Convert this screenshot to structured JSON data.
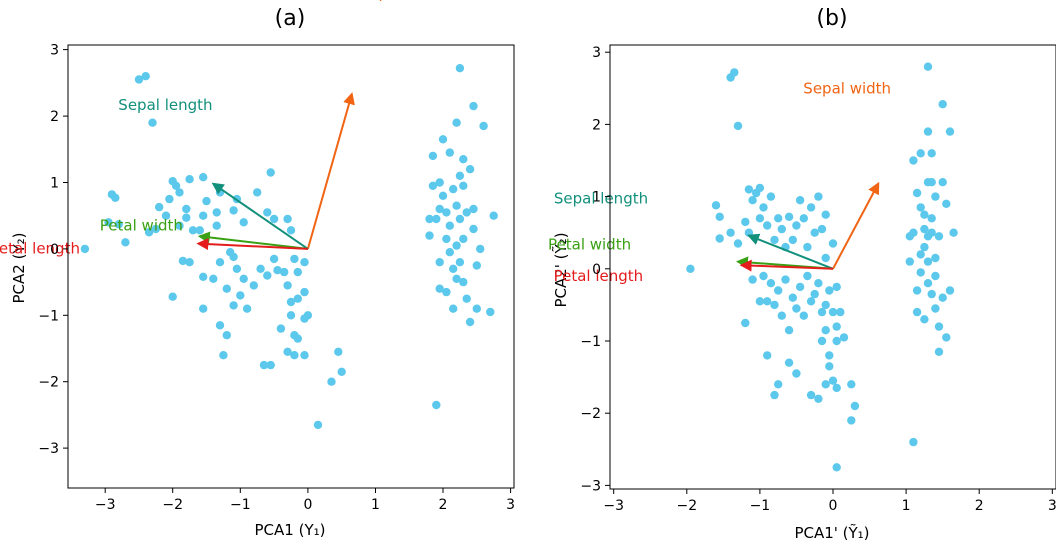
{
  "colors": {
    "points": "#5bc8ec",
    "axes": "#000000",
    "sepal_width": "#f06414",
    "sepal_length": "#12907c",
    "petal_width": "#3aa014",
    "petal_length": "#e41c1c"
  },
  "chart_data": [
    {
      "type": "scatter",
      "title": "(a)",
      "xlabel": "PCA1 (Y₁)",
      "ylabel": "PCA2 (Y₂)",
      "xlim": [
        -3.55,
        3.05
      ],
      "ylim": [
        -3.6,
        3.07
      ],
      "xticks": [
        -3,
        -2,
        -1,
        0,
        1,
        2,
        3
      ],
      "xtick_labels": [
        "−3",
        "−2",
        "−1",
        "0",
        "1",
        "2",
        "3"
      ],
      "yticks": [
        -3,
        -2,
        -1,
        0,
        1,
        2,
        3
      ],
      "ytick_labels": [
        "−3",
        "−2",
        "−1",
        "0",
        "1",
        "2",
        "3"
      ],
      "grid": false,
      "arrows": [
        {
          "name": "Sepal width",
          "color": "sepal_width",
          "dx": 0.65,
          "dy": 2.33
        },
        {
          "name": "Sepal length",
          "color": "sepal_length",
          "dx": -1.4,
          "dy": 0.98
        },
        {
          "name": "Petal width",
          "color": "petal_width",
          "dx": -1.6,
          "dy": 0.19
        },
        {
          "name": "Petal length",
          "color": "petal_length",
          "dx": -1.62,
          "dy": 0.08
        }
      ],
      "points": [
        [
          -3.3,
          0.0
        ],
        [
          -2.9,
          0.82
        ],
        [
          -2.85,
          0.77
        ],
        [
          -2.95,
          0.4
        ],
        [
          -2.8,
          0.37
        ],
        [
          -2.7,
          0.1
        ],
        [
          -2.5,
          2.55
        ],
        [
          -2.4,
          2.6
        ],
        [
          -2.3,
          1.9
        ],
        [
          -2.35,
          0.25
        ],
        [
          -2.25,
          0.3
        ],
        [
          -2.2,
          0.63
        ],
        [
          -2.1,
          0.5
        ],
        [
          -2.0,
          1.02
        ],
        [
          -1.95,
          0.95
        ],
        [
          -2.05,
          0.75
        ],
        [
          -1.9,
          0.85
        ],
        [
          -1.75,
          1.05
        ],
        [
          -1.8,
          0.6
        ],
        [
          -1.9,
          0.35
        ],
        [
          -1.8,
          0.47
        ],
        [
          -1.7,
          0.28
        ],
        [
          -1.6,
          0.28
        ],
        [
          -1.55,
          1.08
        ],
        [
          -1.5,
          0.72
        ],
        [
          -1.3,
          0.85
        ],
        [
          -1.55,
          0.5
        ],
        [
          -1.35,
          0.55
        ],
        [
          -1.35,
          0.35
        ],
        [
          -1.1,
          0.58
        ],
        [
          -1.05,
          0.75
        ],
        [
          -0.95,
          0.4
        ],
        [
          -0.75,
          0.85
        ],
        [
          -0.6,
          0.55
        ],
        [
          -0.5,
          0.45
        ],
        [
          -0.55,
          1.15
        ],
        [
          -0.3,
          0.45
        ],
        [
          -0.25,
          0.28
        ],
        [
          -1.85,
          -0.18
        ],
        [
          -1.75,
          -0.2
        ],
        [
          -1.55,
          -0.42
        ],
        [
          -1.4,
          -0.45
        ],
        [
          -1.3,
          -0.2
        ],
        [
          -1.15,
          -0.05
        ],
        [
          -1.2,
          -0.6
        ],
        [
          -1.1,
          -0.12
        ],
        [
          -1.05,
          -0.3
        ],
        [
          -0.95,
          -0.45
        ],
        [
          -1.0,
          -0.7
        ],
        [
          -1.1,
          -0.85
        ],
        [
          -0.9,
          -0.9
        ],
        [
          -0.8,
          -0.55
        ],
        [
          -0.7,
          -0.3
        ],
        [
          -0.6,
          -0.4
        ],
        [
          -0.5,
          -0.15
        ],
        [
          -0.45,
          -0.32
        ],
        [
          -0.35,
          -0.35
        ],
        [
          -0.2,
          -0.15
        ],
        [
          -0.15,
          -0.35
        ],
        [
          -0.05,
          -0.2
        ],
        [
          -0.3,
          -0.55
        ],
        [
          -0.25,
          -0.8
        ],
        [
          -0.15,
          -0.75
        ],
        [
          -0.05,
          -0.65
        ],
        [
          0.0,
          -1.0
        ],
        [
          -0.05,
          -1.05
        ],
        [
          -0.25,
          -1.0
        ],
        [
          -0.2,
          -1.3
        ],
        [
          -0.3,
          -1.55
        ],
        [
          -0.2,
          -1.6
        ],
        [
          -0.55,
          -1.75
        ],
        [
          -0.65,
          -1.75
        ],
        [
          -0.4,
          -1.2
        ],
        [
          -1.2,
          -1.3
        ],
        [
          -1.25,
          -1.6
        ],
        [
          -1.3,
          -1.15
        ],
        [
          -1.55,
          -0.9
        ],
        [
          -2.0,
          -0.72
        ],
        [
          0.45,
          -1.55
        ],
        [
          0.5,
          -1.85
        ],
        [
          0.35,
          -2.0
        ],
        [
          0.15,
          -2.65
        ],
        [
          -0.05,
          -1.6
        ],
        [
          -0.15,
          -1.35
        ],
        [
          1.9,
          -2.35
        ],
        [
          1.85,
          1.4
        ],
        [
          1.8,
          0.45
        ],
        [
          1.8,
          0.2
        ],
        [
          1.9,
          0.45
        ],
        [
          1.95,
          1.0
        ],
        [
          1.95,
          -0.2
        ],
        [
          1.95,
          -0.6
        ],
        [
          2.0,
          0.8
        ],
        [
          2.0,
          1.65
        ],
        [
          2.05,
          0.55
        ],
        [
          2.05,
          0.15
        ],
        [
          2.05,
          -0.65
        ],
        [
          2.1,
          0.35
        ],
        [
          2.1,
          1.45
        ],
        [
          2.15,
          0.9
        ],
        [
          2.15,
          -0.3
        ],
        [
          2.2,
          1.9
        ],
        [
          2.2,
          0.65
        ],
        [
          2.2,
          0.05
        ],
        [
          2.25,
          2.72
        ],
        [
          2.25,
          1.1
        ],
        [
          2.25,
          0.45
        ],
        [
          2.25,
          -0.2
        ],
        [
          2.3,
          -0.5
        ],
        [
          2.3,
          0.15
        ],
        [
          2.3,
          0.95
        ],
        [
          2.35,
          -0.75
        ],
        [
          2.35,
          0.55
        ],
        [
          2.4,
          -1.1
        ],
        [
          2.4,
          1.2
        ],
        [
          2.45,
          2.15
        ],
        [
          2.45,
          0.3
        ],
        [
          2.5,
          -0.25
        ],
        [
          2.5,
          -0.9
        ],
        [
          2.55,
          0.0
        ],
        [
          2.6,
          1.85
        ],
        [
          2.7,
          -0.95
        ],
        [
          2.75,
          0.5
        ],
        [
          2.2,
          -0.45
        ],
        [
          2.1,
          -0.05
        ],
        [
          1.95,
          0.6
        ],
        [
          2.3,
          1.35
        ],
        [
          2.15,
          -0.9
        ],
        [
          1.85,
          0.95
        ],
        [
          2.45,
          0.6
        ]
      ]
    },
    {
      "type": "scatter",
      "title": "(b)",
      "xlabel": "PCA1' (Ỹ₁)",
      "ylabel": "PCA2' (Ỹ₂)",
      "xlim": [
        -3.05,
        3.05
      ],
      "ylim": [
        -3.05,
        3.1
      ],
      "xticks": [
        -3,
        -2,
        -1,
        0,
        1,
        2,
        3
      ],
      "xtick_labels": [
        "−3",
        "−2",
        "−1",
        "0",
        "1",
        "2",
        "3"
      ],
      "yticks": [
        -3,
        -2,
        -1,
        0,
        1,
        2,
        3
      ],
      "ytick_labels": [
        "−3",
        "−2",
        "−1",
        "0",
        "1",
        "2",
        "3"
      ],
      "grid": false,
      "arrows": [
        {
          "name": "Sepal width",
          "color": "sepal_width",
          "dx": 0.62,
          "dy": 1.18
        },
        {
          "name": "Sepal length",
          "color": "sepal_length",
          "dx": -1.15,
          "dy": 0.46
        },
        {
          "name": "Petal width",
          "color": "petal_width",
          "dx": -1.3,
          "dy": 0.1
        },
        {
          "name": "Petal length",
          "color": "petal_length",
          "dx": -1.25,
          "dy": 0.05
        }
      ],
      "points": [
        [
          -1.95,
          0.0
        ],
        [
          -1.6,
          0.88
        ],
        [
          -1.55,
          0.72
        ],
        [
          -1.55,
          0.42
        ],
        [
          -1.4,
          0.5
        ],
        [
          -1.4,
          2.65
        ],
        [
          -1.35,
          2.72
        ],
        [
          -1.3,
          1.98
        ],
        [
          -1.3,
          0.35
        ],
        [
          -1.2,
          0.65
        ],
        [
          -1.15,
          1.1
        ],
        [
          -1.1,
          0.95
        ],
        [
          -1.15,
          0.5
        ],
        [
          -1.05,
          1.05
        ],
        [
          -1.0,
          1.12
        ],
        [
          -1.0,
          0.7
        ],
        [
          -0.95,
          0.85
        ],
        [
          -0.9,
          0.6
        ],
        [
          -0.85,
          1.0
        ],
        [
          -0.8,
          0.4
        ],
        [
          -0.75,
          0.7
        ],
        [
          -0.7,
          0.55
        ],
        [
          -0.65,
          0.3
        ],
        [
          -0.6,
          0.72
        ],
        [
          -0.55,
          0.4
        ],
        [
          -0.5,
          0.6
        ],
        [
          -0.45,
          0.95
        ],
        [
          -0.4,
          0.7
        ],
        [
          -0.35,
          0.3
        ],
        [
          -0.3,
          0.85
        ],
        [
          -0.25,
          0.5
        ],
        [
          -0.2,
          1.0
        ],
        [
          -0.15,
          0.55
        ],
        [
          -0.1,
          0.15
        ],
        [
          -0.1,
          0.75
        ],
        [
          0.0,
          0.35
        ],
        [
          -1.1,
          -0.15
        ],
        [
          -1.0,
          -0.45
        ],
        [
          -0.95,
          -0.1
        ],
        [
          -0.9,
          -0.45
        ],
        [
          -0.85,
          -0.2
        ],
        [
          -0.8,
          -0.5
        ],
        [
          -0.75,
          -0.3
        ],
        [
          -0.7,
          -0.65
        ],
        [
          -0.65,
          -0.15
        ],
        [
          -0.6,
          -0.85
        ],
        [
          -0.55,
          -0.4
        ],
        [
          -0.5,
          -0.55
        ],
        [
          -0.45,
          -0.25
        ],
        [
          -0.4,
          -0.65
        ],
        [
          -0.35,
          -0.1
        ],
        [
          -0.3,
          -0.45
        ],
        [
          -0.25,
          -0.35
        ],
        [
          -0.2,
          -0.2
        ],
        [
          -0.15,
          -0.6
        ],
        [
          -0.1,
          -0.5
        ],
        [
          -0.05,
          -0.3
        ],
        [
          0.0,
          -0.6
        ],
        [
          0.05,
          -0.25
        ],
        [
          -0.1,
          -0.85
        ],
        [
          -0.15,
          -1.0
        ],
        [
          -0.05,
          -1.2
        ],
        [
          0.05,
          -0.8
        ],
        [
          0.0,
          -1.55
        ],
        [
          -0.1,
          -1.6
        ],
        [
          0.05,
          -1.65
        ],
        [
          -0.2,
          -1.8
        ],
        [
          -0.3,
          -1.75
        ],
        [
          -0.5,
          -1.45
        ],
        [
          -0.6,
          -1.3
        ],
        [
          -0.75,
          -1.6
        ],
        [
          -0.8,
          -1.75
        ],
        [
          -0.9,
          -1.2
        ],
        [
          -1.2,
          -0.75
        ],
        [
          0.05,
          -1.0
        ],
        [
          0.15,
          -0.95
        ],
        [
          0.25,
          -1.6
        ],
        [
          0.3,
          -1.9
        ],
        [
          0.25,
          -2.1
        ],
        [
          0.05,
          -2.75
        ],
        [
          -0.05,
          -1.35
        ],
        [
          0.1,
          -0.6
        ],
        [
          1.1,
          -2.4
        ],
        [
          1.1,
          1.5
        ],
        [
          1.05,
          0.45
        ],
        [
          1.05,
          0.1
        ],
        [
          1.1,
          0.5
        ],
        [
          1.15,
          1.05
        ],
        [
          1.15,
          -0.6
        ],
        [
          1.2,
          0.2
        ],
        [
          1.2,
          0.85
        ],
        [
          1.2,
          1.6
        ],
        [
          1.25,
          0.55
        ],
        [
          1.25,
          -0.7
        ],
        [
          1.25,
          0.3
        ],
        [
          1.3,
          2.8
        ],
        [
          1.3,
          1.2
        ],
        [
          1.3,
          0.1
        ],
        [
          1.3,
          -0.2
        ],
        [
          1.3,
          1.9
        ],
        [
          1.35,
          0.7
        ],
        [
          1.35,
          -0.35
        ],
        [
          1.35,
          1.6
        ],
        [
          1.35,
          0.5
        ],
        [
          1.4,
          -0.55
        ],
        [
          1.4,
          1.0
        ],
        [
          1.4,
          0.15
        ],
        [
          1.45,
          -1.15
        ],
        [
          1.45,
          -0.8
        ],
        [
          1.45,
          0.45
        ],
        [
          1.5,
          2.28
        ],
        [
          1.5,
          -0.4
        ],
        [
          1.5,
          1.2
        ],
        [
          1.55,
          0.9
        ],
        [
          1.55,
          -0.95
        ],
        [
          1.6,
          1.9
        ],
        [
          1.6,
          -0.3
        ],
        [
          1.65,
          0.5
        ],
        [
          1.2,
          -0.05
        ],
        [
          1.3,
          0.45
        ],
        [
          1.4,
          -0.1
        ],
        [
          1.25,
          0.75
        ],
        [
          1.35,
          1.2
        ],
        [
          1.15,
          -0.3
        ]
      ]
    }
  ]
}
